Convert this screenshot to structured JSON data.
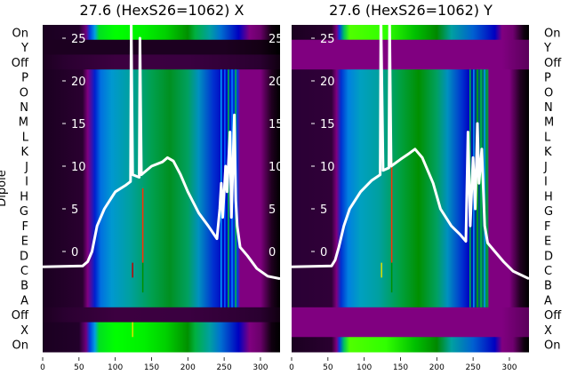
{
  "chart_data": [
    {
      "type": "heatmap",
      "title": "27.6 (HexS26=1062) X",
      "ylabel": "Dipole",
      "xlim": [
        0,
        327
      ],
      "ylim_overlay": [
        -11.8,
        26.6
      ],
      "xticks": [
        "0",
        "50",
        "100",
        "150",
        "200",
        "250",
        "300"
      ],
      "overlay_yticks": [
        "25",
        "20",
        "15",
        "10",
        "5",
        "0"
      ],
      "rows": [
        "On",
        "Y",
        "Off",
        "P",
        "O",
        "N",
        "M",
        "L",
        "K",
        "J",
        "I",
        "H",
        "G",
        "F",
        "E",
        "D",
        "C",
        "B",
        "A",
        "Off",
        "X",
        "On"
      ],
      "row_profiles": [
        "on",
        "dark",
        "off",
        "beam",
        "beam",
        "beam",
        "beam",
        "beam",
        "beam",
        "beam",
        "beam",
        "beam",
        "beam",
        "beam",
        "beam",
        "beam",
        "beam",
        "beam",
        "beam",
        "off",
        "on",
        "on"
      ],
      "profiles": {
        "on": [
          [
            0,
            "#1a0020"
          ],
          [
            50,
            "#22002a"
          ],
          [
            60,
            "#700080"
          ],
          [
            65,
            "#0040e0"
          ],
          [
            72,
            "#00a0e0"
          ],
          [
            78,
            "#00e020"
          ],
          [
            100,
            "#00ff00"
          ],
          [
            140,
            "#00f000"
          ],
          [
            170,
            "#00d000"
          ],
          [
            200,
            "#009000"
          ],
          [
            210,
            "#00b040"
          ],
          [
            230,
            "#00a0a0"
          ],
          [
            245,
            "#0070d0"
          ],
          [
            270,
            "#0000c0"
          ],
          [
            285,
            "#800080"
          ],
          [
            300,
            "#6a006a"
          ],
          [
            315,
            "#100010"
          ],
          [
            327,
            "#000000"
          ]
        ],
        "dark": [
          [
            0,
            "#1c0020"
          ],
          [
            250,
            "#1c0020"
          ],
          [
            300,
            "#140014"
          ],
          [
            327,
            "#000000"
          ]
        ],
        "off": [
          [
            0,
            "#1c0020"
          ],
          [
            30,
            "#2a0030"
          ],
          [
            100,
            "#3c0040"
          ],
          [
            200,
            "#3a0040"
          ],
          [
            300,
            "#2a0030"
          ],
          [
            327,
            "#100010"
          ]
        ],
        "beam": [
          [
            0,
            "#1a0020"
          ],
          [
            55,
            "#2a0030"
          ],
          [
            62,
            "#800080"
          ],
          [
            72,
            "#0020d0"
          ],
          [
            80,
            "#0070e0"
          ],
          [
            95,
            "#0098d0"
          ],
          [
            120,
            "#00a0a0"
          ],
          [
            150,
            "#00a050"
          ],
          [
            175,
            "#009020"
          ],
          [
            200,
            "#00a060"
          ],
          [
            215,
            "#0090c0"
          ],
          [
            235,
            "#0030d0"
          ],
          [
            250,
            "#0000c0"
          ],
          [
            268,
            "#0040e0"
          ],
          [
            272,
            "#800080"
          ],
          [
            300,
            "#800080"
          ],
          [
            315,
            "#200020"
          ],
          [
            327,
            "#000000"
          ]
        ]
      },
      "stripes": [
        [
          245,
          3,
          18,
          "#00a0ff"
        ],
        [
          250,
          3,
          18,
          "#0060ff"
        ],
        [
          255,
          3,
          18,
          "#00c040"
        ],
        [
          260,
          3,
          18,
          "#0080ff"
        ],
        [
          265,
          3,
          18,
          "#00c040"
        ],
        [
          137,
          11,
          15,
          "#ff3000"
        ],
        [
          123,
          16,
          16,
          "#c00000"
        ],
        [
          137,
          16,
          17,
          "#009000"
        ],
        [
          123,
          20,
          20,
          "#e0e000"
        ]
      ],
      "line": [
        [
          0,
          -1.8
        ],
        [
          55,
          -1.7
        ],
        [
          62,
          -1.2
        ],
        [
          68,
          0
        ],
        [
          75,
          3
        ],
        [
          85,
          5
        ],
        [
          100,
          7
        ],
        [
          115,
          7.8
        ],
        [
          121,
          8.2
        ],
        [
          122,
          26.5
        ],
        [
          124,
          9
        ],
        [
          133,
          8.7
        ],
        [
          134,
          25
        ],
        [
          136,
          9
        ],
        [
          150,
          10
        ],
        [
          165,
          10.5
        ],
        [
          172,
          11
        ],
        [
          180,
          10.6
        ],
        [
          190,
          9
        ],
        [
          200,
          7
        ],
        [
          215,
          4.5
        ],
        [
          228,
          3
        ],
        [
          240,
          1.5
        ],
        [
          244,
          5
        ],
        [
          246,
          8
        ],
        [
          248,
          4
        ],
        [
          252,
          10
        ],
        [
          254,
          7
        ],
        [
          258,
          14
        ],
        [
          260,
          4
        ],
        [
          264,
          16
        ],
        [
          266,
          6
        ],
        [
          268,
          3
        ],
        [
          272,
          0.5
        ],
        [
          282,
          -0.5
        ],
        [
          295,
          -2
        ],
        [
          310,
          -2.9
        ],
        [
          327,
          -3.2
        ]
      ]
    },
    {
      "type": "heatmap",
      "title": "27.6 (HexS26=1062) Y",
      "xlim": [
        0,
        327
      ],
      "ylim_overlay": [
        -11.8,
        26.6
      ],
      "xticks": [
        "0",
        "50",
        "100",
        "150",
        "200",
        "250",
        "300"
      ],
      "overlay_yticks": [
        "25",
        "20",
        "15",
        "10",
        "5",
        "0"
      ],
      "secondary_yticks": [
        "25",
        "20",
        "15",
        "10",
        "5",
        "0"
      ],
      "rows": [
        "On",
        "Y",
        "Off",
        "P",
        "O",
        "N",
        "M",
        "L",
        "K",
        "J",
        "I",
        "H",
        "G",
        "F",
        "E",
        "D",
        "C",
        "B",
        "A",
        "Off",
        "X",
        "On"
      ],
      "row_profiles": [
        "on",
        "purple",
        "purple",
        "beam",
        "beam",
        "beam",
        "beam",
        "beam",
        "beam",
        "beam",
        "beam",
        "beam",
        "beam",
        "beam",
        "beam",
        "beam",
        "beam",
        "beam",
        "beam",
        "purple",
        "purple",
        "on"
      ],
      "profiles": {
        "on": [
          [
            0,
            "#1a0020"
          ],
          [
            55,
            "#2a0030"
          ],
          [
            62,
            "#800080"
          ],
          [
            66,
            "#0040e0"
          ],
          [
            72,
            "#00c060"
          ],
          [
            80,
            "#50ff00"
          ],
          [
            130,
            "#30ff00"
          ],
          [
            170,
            "#00c000"
          ],
          [
            200,
            "#008800"
          ],
          [
            220,
            "#00a0a0"
          ],
          [
            250,
            "#0060d0"
          ],
          [
            280,
            "#0000c0"
          ],
          [
            290,
            "#800080"
          ],
          [
            305,
            "#700070"
          ],
          [
            320,
            "#100010"
          ],
          [
            327,
            "#000000"
          ]
        ],
        "purple": [
          [
            0,
            "#800080"
          ],
          [
            290,
            "#800080"
          ],
          [
            327,
            "#5a005a"
          ]
        ],
        "beam": [
          [
            0,
            "#2a0035"
          ],
          [
            55,
            "#300038"
          ],
          [
            62,
            "#800080"
          ],
          [
            68,
            "#0030d0"
          ],
          [
            78,
            "#0080e0"
          ],
          [
            95,
            "#00a0c0"
          ],
          [
            120,
            "#00a0a0"
          ],
          [
            150,
            "#00a040"
          ],
          [
            175,
            "#009000"
          ],
          [
            200,
            "#00a060"
          ],
          [
            215,
            "#0090c0"
          ],
          [
            235,
            "#0030d0"
          ],
          [
            245,
            "#0000c0"
          ],
          [
            270,
            "#00a040"
          ],
          [
            272,
            "#800080"
          ],
          [
            300,
            "#800080"
          ],
          [
            315,
            "#200020"
          ],
          [
            327,
            "#000000"
          ]
        ]
      },
      "stripes": [
        [
          245,
          3,
          18,
          "#00c040"
        ],
        [
          250,
          3,
          18,
          "#0090ff"
        ],
        [
          255,
          3,
          18,
          "#00b000"
        ],
        [
          260,
          3,
          18,
          "#00c040"
        ],
        [
          265,
          3,
          18,
          "#0090ff"
        ],
        [
          137,
          9,
          15,
          "#ff3000"
        ],
        [
          123,
          16,
          16,
          "#e0e000"
        ],
        [
          137,
          16,
          17,
          "#009000"
        ]
      ],
      "line": [
        [
          0,
          -1.8
        ],
        [
          55,
          -1.7
        ],
        [
          60,
          -1
        ],
        [
          65,
          0.5
        ],
        [
          72,
          3
        ],
        [
          80,
          5
        ],
        [
          95,
          7
        ],
        [
          110,
          8.3
        ],
        [
          122,
          9
        ],
        [
          123,
          28
        ],
        [
          126,
          9.5
        ],
        [
          134,
          9.8
        ],
        [
          135,
          27
        ],
        [
          137,
          10
        ],
        [
          150,
          10.8
        ],
        [
          162,
          11.5
        ],
        [
          170,
          12
        ],
        [
          180,
          11
        ],
        [
          195,
          8
        ],
        [
          205,
          5
        ],
        [
          220,
          3
        ],
        [
          232,
          2
        ],
        [
          240,
          1.2
        ],
        [
          243,
          14
        ],
        [
          246,
          3
        ],
        [
          250,
          11
        ],
        [
          253,
          5
        ],
        [
          256,
          15
        ],
        [
          258,
          8
        ],
        [
          262,
          12
        ],
        [
          266,
          3
        ],
        [
          270,
          1
        ],
        [
          280,
          0
        ],
        [
          292,
          -1.2
        ],
        [
          305,
          -2.3
        ],
        [
          327,
          -3.2
        ]
      ]
    }
  ]
}
